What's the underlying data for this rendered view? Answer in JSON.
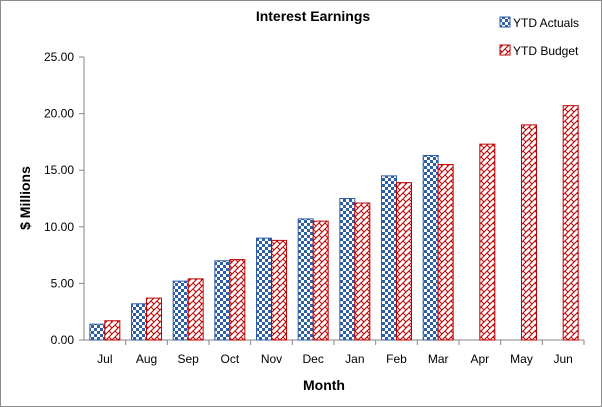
{
  "chart_data": {
    "type": "bar",
    "title": "Interest Earnings",
    "xlabel": "Month",
    "ylabel": "$ Millions",
    "categories": [
      "Jul",
      "Aug",
      "Sep",
      "Oct",
      "Nov",
      "Dec",
      "Jan",
      "Feb",
      "Mar",
      "Apr",
      "May",
      "Jun"
    ],
    "series": [
      {
        "name": "YTD Actuals",
        "color": "#2e5ea8",
        "pattern": "checkerboard",
        "values": [
          1.4,
          3.2,
          5.2,
          7.0,
          9.0,
          10.7,
          12.5,
          14.5,
          16.3,
          null,
          null,
          null
        ]
      },
      {
        "name": "YTD Budget",
        "color": "#c00000",
        "pattern": "diagonal-weave",
        "values": [
          1.7,
          3.7,
          5.4,
          7.1,
          8.8,
          10.5,
          12.1,
          13.9,
          15.5,
          17.3,
          19.0,
          20.7
        ]
      }
    ],
    "ylim": [
      0,
      25
    ],
    "yticks": [
      "0.00",
      "5.00",
      "10.00",
      "15.00",
      "20.00",
      "25.00"
    ],
    "grid": false,
    "legend_position": "top-right"
  }
}
